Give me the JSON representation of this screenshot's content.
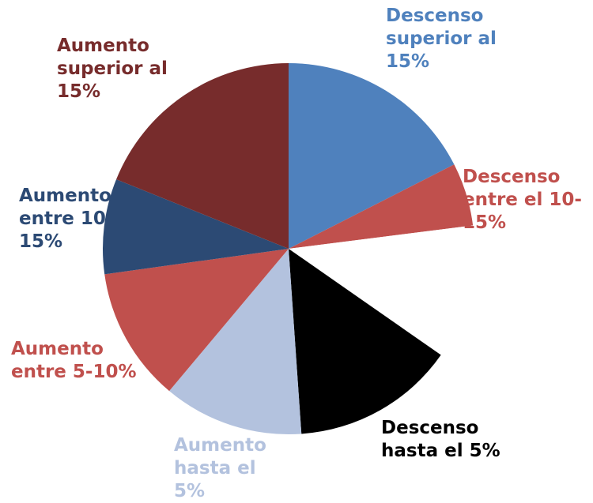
{
  "chart_data": {
    "type": "pie",
    "categories": [
      "Descenso superior al 15%",
      "Descenso entre el 10-15%",
      null,
      "Descenso hasta el 5%",
      "Aumento hasta el 5%",
      "Aumento entre 5-10%",
      "Aumento entre 10-15%",
      "Aumento superior al 15%"
    ],
    "values": [
      17.5,
      5.5,
      11.7,
      14.2,
      12.2,
      11.7,
      8.3,
      18.9
    ],
    "colors": [
      "#4f81bd",
      "#c0504d",
      "#ffffff",
      "#000000",
      "#b3c2de",
      "#c0504d",
      "#2c4a74",
      "#772c2c"
    ]
  }
}
